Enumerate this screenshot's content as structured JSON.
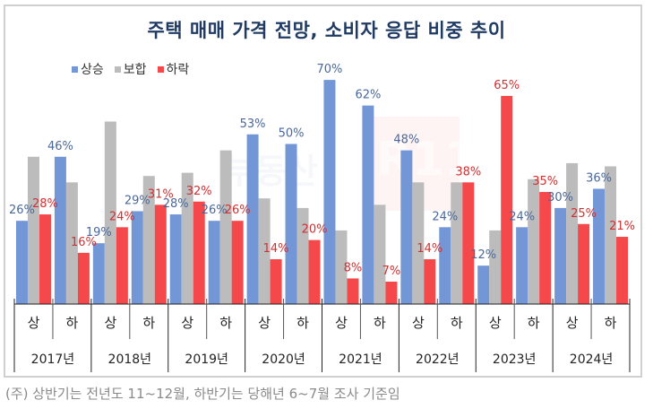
{
  "chart_data": {
    "type": "bar",
    "title": "주택 매매 가격 전망, 소비자 응답 비중 추이",
    "xlabel": "",
    "ylabel": "",
    "ylim": [
      0,
      75
    ],
    "grid": false,
    "legend_position": "top-left",
    "categories": [
      "상",
      "하",
      "상",
      "하",
      "상",
      "하",
      "상",
      "하",
      "상",
      "하",
      "상",
      "하",
      "상",
      "하",
      "상",
      "하"
    ],
    "years": [
      "2017년",
      "2018년",
      "2019년",
      "2020년",
      "2021년",
      "2022년",
      "2023년",
      "2024년"
    ],
    "series": [
      {
        "name": "상승",
        "color": "#7396d6",
        "label_color": "#4a6899",
        "labeled": true,
        "values": [
          26,
          46,
          19,
          29,
          28,
          26,
          53,
          50,
          70,
          62,
          48,
          24,
          12,
          24,
          30,
          36
        ]
      },
      {
        "name": "보합",
        "color": "#bcbcbc",
        "label_color": "#888888",
        "labeled": false,
        "values": [
          46,
          38,
          57,
          40,
          41,
          48,
          33,
          30,
          23,
          31,
          38,
          38,
          23,
          39,
          44,
          43
        ]
      },
      {
        "name": "하락",
        "color": "#f4484a",
        "label_color": "#d32f30",
        "labeled": true,
        "values": [
          28,
          16,
          24,
          31,
          32,
          26,
          14,
          20,
          8,
          7,
          14,
          38,
          65,
          35,
          25,
          21
        ]
      }
    ],
    "value_suffix": "%"
  },
  "watermark": {
    "text": "부동산",
    "mark": "R114"
  },
  "note": "(주) 상반기는 전년도 11~12월, 하반기는 당해년 6~7월 조사 기준임"
}
